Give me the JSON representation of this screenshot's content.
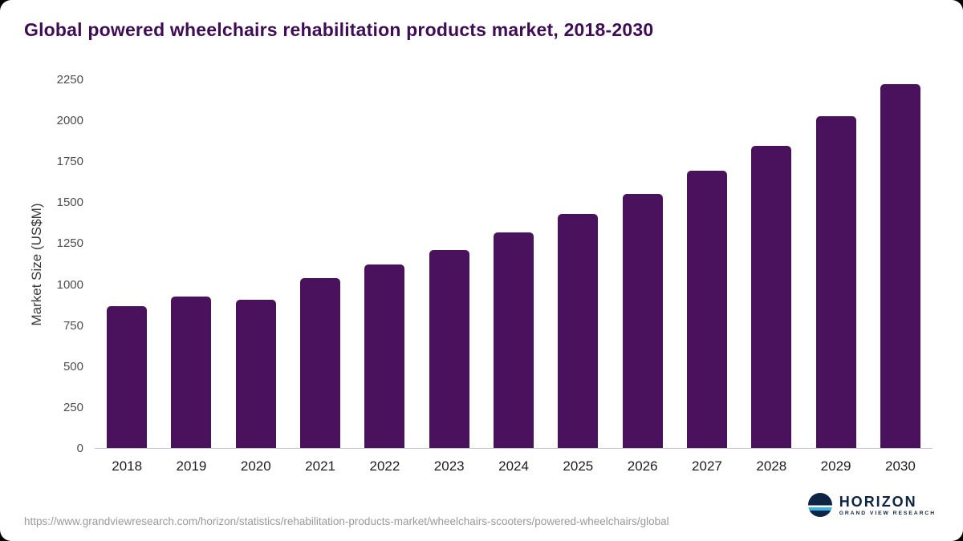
{
  "title": "Global powered wheelchairs rehabilitation products market, 2018-2030",
  "colors": {
    "bar": "#4a115c",
    "title_text": "#3f0c56",
    "axis_text": "#4d4d4d",
    "x_label_text": "#1c1c1c",
    "footer_text": "#9a9a9a",
    "logo_navy": "#0d2444",
    "logo_cyan": "#35b4e5"
  },
  "chart_data": {
    "type": "bar",
    "title": "Global powered wheelchairs rehabilitation products market, 2018-2030",
    "categories": [
      "2018",
      "2019",
      "2020",
      "2021",
      "2022",
      "2023",
      "2024",
      "2025",
      "2026",
      "2027",
      "2028",
      "2029",
      "2030"
    ],
    "values": [
      870,
      925,
      905,
      1040,
      1125,
      1210,
      1320,
      1430,
      1555,
      1695,
      1850,
      2030,
      2225
    ],
    "xlabel": "",
    "ylabel": "Market Size (US$M)",
    "ylim": [
      0,
      2250
    ],
    "yticks": [
      0,
      250,
      500,
      750,
      1000,
      1250,
      1500,
      1750,
      2000,
      2250
    ],
    "grid": false,
    "legend": false
  },
  "footer": {
    "source_url": "https://www.grandviewresearch.com/horizon/statistics/rehabilitation-products-market/wheelchairs-scooters/powered-wheelchairs/global"
  },
  "logo": {
    "name": "HORIZON",
    "subtitle": "GRAND VIEW RESEARCH"
  }
}
